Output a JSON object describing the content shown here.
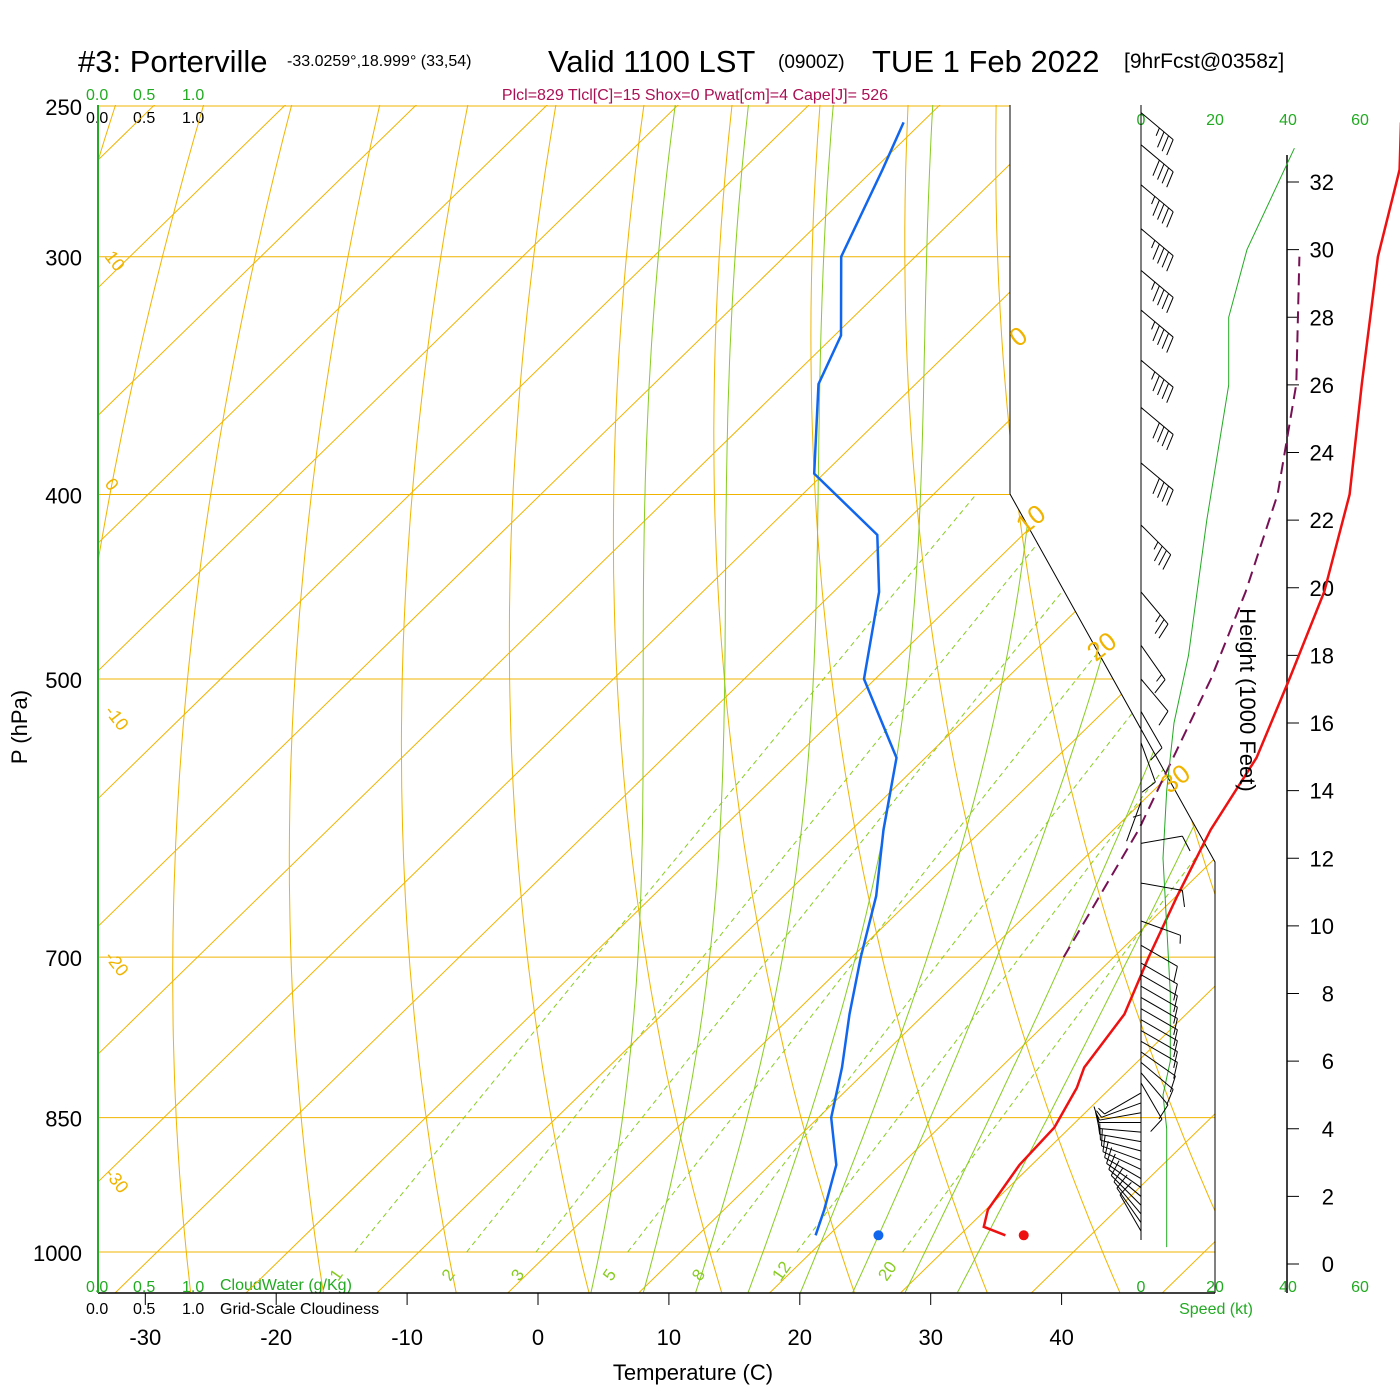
{
  "header": {
    "station": "#3: Porterville",
    "coords": "-33.0259°,18.999° (33,54)",
    "valid": "Valid 1100 LST",
    "zulu": "(0900Z)",
    "date": "TUE 1 Feb 2022",
    "forecast": "[9hrFcst@0358z]",
    "indices": "Plcl=829 Tlcl[C]=15 Shox=0 Pwat[cm]=4 Cape[J]= 526"
  },
  "scales": {
    "cloudwater_ticks": [
      "0.0",
      "0.5",
      "1.0"
    ],
    "cloudiness_ticks": [
      "0.0",
      "0.5",
      "1.0"
    ],
    "cloudwater_label": "CloudWater (g/Kg)",
    "cloudiness_label": "Grid-Scale Cloudiness",
    "speed_ticks": [
      "0",
      "20",
      "40",
      "60"
    ],
    "speed_label": "Speed (kt)"
  },
  "colors": {
    "isotherm": "#f0b400",
    "mixing_ratio": "#88cc22",
    "moist_adiabat": "#88cc22",
    "temperature": "#ee1111",
    "dewpoint": "#1166ee",
    "parcel": "#771155",
    "wind_speed": "#22aa22",
    "green_text": "#22aa22",
    "index_text": "#aa1155"
  },
  "chart_data": {
    "type": "skew-t",
    "xlabel": "Temperature (C)",
    "ylabel": "P (hPa)",
    "y2label": "Height (1000 Feet)",
    "x_ticks": [
      -30,
      -20,
      -10,
      0,
      10,
      20,
      30,
      40
    ],
    "pressure_ticks": [
      250,
      300,
      400,
      500,
      700,
      850,
      1000
    ],
    "height_ticks": [
      0,
      2,
      4,
      6,
      8,
      10,
      12,
      14,
      16,
      18,
      20,
      22,
      24,
      26,
      28,
      30,
      32
    ],
    "dry_adiabat_labels": [
      {
        "text": "10",
        "side": "left",
        "p": 300
      },
      {
        "text": "0",
        "side": "left",
        "p": 395
      },
      {
        "text": "-10",
        "side": "left",
        "p": 520
      },
      {
        "text": "-20",
        "side": "left",
        "p": 700
      },
      {
        "text": "-30",
        "side": "left",
        "p": 910
      },
      {
        "text": "0",
        "side": "right",
        "p": 335
      },
      {
        "text": "10",
        "side": "right",
        "p": 420
      },
      {
        "text": "20",
        "side": "right",
        "p": 490
      },
      {
        "text": "30",
        "side": "right",
        "p": 575
      }
    ],
    "mixing_ratio_labels": [
      "1",
      "2",
      "3",
      "5",
      "8",
      "12",
      "20"
    ],
    "temperature": [
      {
        "p": 980,
        "t": 31.3
      },
      {
        "p": 970,
        "t": 29.0
      },
      {
        "p": 950,
        "t": 28.0
      },
      {
        "p": 900,
        "t": 27.0
      },
      {
        "p": 860,
        "t": 26.8
      },
      {
        "p": 820,
        "t": 25.5
      },
      {
        "p": 800,
        "t": 24.5
      },
      {
        "p": 750,
        "t": 23.5
      },
      {
        "p": 700,
        "t": 21.0
      },
      {
        "p": 650,
        "t": 18.5
      },
      {
        "p": 600,
        "t": 16.0
      },
      {
        "p": 550,
        "t": 14.0
      },
      {
        "p": 500,
        "t": 10.5
      },
      {
        "p": 450,
        "t": 6.5
      },
      {
        "p": 400,
        "t": 1.0
      },
      {
        "p": 350,
        "t": -6.5
      },
      {
        "p": 300,
        "t": -15.0
      },
      {
        "p": 270,
        "t": -20.0
      },
      {
        "p": 255,
        "t": -23.5
      }
    ],
    "dewpoint": [
      {
        "p": 980,
        "t": 16.8
      },
      {
        "p": 950,
        "t": 15.5
      },
      {
        "p": 900,
        "t": 13.0
      },
      {
        "p": 850,
        "t": 9.0
      },
      {
        "p": 800,
        "t": 6.0
      },
      {
        "p": 750,
        "t": 2.5
      },
      {
        "p": 700,
        "t": -1.0
      },
      {
        "p": 650,
        "t": -4.5
      },
      {
        "p": 600,
        "t": -9.0
      },
      {
        "p": 550,
        "t": -13.5
      },
      {
        "p": 500,
        "t": -22.0
      },
      {
        "p": 450,
        "t": -27.5
      },
      {
        "p": 420,
        "t": -32.0
      },
      {
        "p": 390,
        "t": -41.5
      },
      {
        "p": 350,
        "t": -48.0
      },
      {
        "p": 330,
        "t": -50.0
      },
      {
        "p": 300,
        "t": -56.0
      },
      {
        "p": 270,
        "t": -59.5
      },
      {
        "p": 255,
        "t": -61.5
      }
    ],
    "parcel": [
      {
        "p": 700,
        "t": 14.5
      },
      {
        "p": 600,
        "t": 10.5
      },
      {
        "p": 500,
        "t": 4.5
      },
      {
        "p": 450,
        "t": 0.5
      },
      {
        "p": 400,
        "t": -4.5
      },
      {
        "p": 350,
        "t": -11.5
      },
      {
        "p": 300,
        "t": -21.0
      }
    ],
    "surface": {
      "p": 980,
      "t": 32.7,
      "td": 21.6
    },
    "wind_speed_profile": [
      {
        "h": 0.5,
        "kt": 1
      },
      {
        "h": 2,
        "kt": 1
      },
      {
        "h": 4,
        "kt": 1
      },
      {
        "h": 5,
        "kt": 0
      },
      {
        "h": 6,
        "kt": 2
      },
      {
        "h": 8,
        "kt": 2
      },
      {
        "h": 10,
        "kt": 1
      },
      {
        "h": 12,
        "kt": 0
      },
      {
        "h": 14,
        "kt": 1
      },
      {
        "h": 16,
        "kt": 3
      },
      {
        "h": 18,
        "kt": 7
      },
      {
        "h": 22,
        "kt": 12
      },
      {
        "h": 26,
        "kt": 18
      },
      {
        "h": 28,
        "kt": 18
      },
      {
        "h": 30,
        "kt": 23
      },
      {
        "h": 33,
        "kt": 36
      }
    ],
    "wind_barbs": [
      {
        "p": 975,
        "dir": 150,
        "kt": 10
      },
      {
        "p": 965,
        "dir": 145,
        "kt": 12
      },
      {
        "p": 955,
        "dir": 140,
        "kt": 12
      },
      {
        "p": 945,
        "dir": 135,
        "kt": 12
      },
      {
        "p": 935,
        "dir": 130,
        "kt": 12
      },
      {
        "p": 925,
        "dir": 125,
        "kt": 12
      },
      {
        "p": 915,
        "dir": 120,
        "kt": 12
      },
      {
        "p": 905,
        "dir": 115,
        "kt": 12
      },
      {
        "p": 895,
        "dir": 110,
        "kt": 12
      },
      {
        "p": 885,
        "dir": 105,
        "kt": 10
      },
      {
        "p": 875,
        "dir": 100,
        "kt": 10
      },
      {
        "p": 865,
        "dir": 95,
        "kt": 10
      },
      {
        "p": 855,
        "dir": 90,
        "kt": 10
      },
      {
        "p": 845,
        "dir": 80,
        "kt": 8
      },
      {
        "p": 835,
        "dir": 70,
        "kt": 8
      },
      {
        "p": 825,
        "dir": 60,
        "kt": 8
      },
      {
        "p": 815,
        "dir": 330,
        "kt": 10
      },
      {
        "p": 805,
        "dir": 320,
        "kt": 10
      },
      {
        "p": 795,
        "dir": 310,
        "kt": 10
      },
      {
        "p": 785,
        "dir": 305,
        "kt": 10
      },
      {
        "p": 775,
        "dir": 300,
        "kt": 10
      },
      {
        "p": 765,
        "dir": 300,
        "kt": 10
      },
      {
        "p": 755,
        "dir": 300,
        "kt": 10
      },
      {
        "p": 745,
        "dir": 300,
        "kt": 10
      },
      {
        "p": 735,
        "dir": 300,
        "kt": 10
      },
      {
        "p": 725,
        "dir": 300,
        "kt": 10
      },
      {
        "p": 715,
        "dir": 300,
        "kt": 10
      },
      {
        "p": 705,
        "dir": 300,
        "kt": 10
      },
      {
        "p": 690,
        "dir": 300,
        "kt": 10
      },
      {
        "p": 670,
        "dir": 290,
        "kt": 8
      },
      {
        "p": 640,
        "dir": 280,
        "kt": 10
      },
      {
        "p": 610,
        "dir": 260,
        "kt": 10
      },
      {
        "p": 580,
        "dir": 20,
        "kt": 3
      },
      {
        "p": 560,
        "dir": 0,
        "kt": 5
      },
      {
        "p": 540,
        "dir": 340,
        "kt": 10
      },
      {
        "p": 520,
        "dir": 330,
        "kt": 12
      },
      {
        "p": 500,
        "dir": 320,
        "kt": 12
      },
      {
        "p": 480,
        "dir": 325,
        "kt": 15
      },
      {
        "p": 450,
        "dir": 320,
        "kt": 25
      },
      {
        "p": 415,
        "dir": 315,
        "kt": 35
      },
      {
        "p": 385,
        "dir": 310,
        "kt": 40
      },
      {
        "p": 360,
        "dir": 310,
        "kt": 40
      },
      {
        "p": 340,
        "dir": 310,
        "kt": 45
      },
      {
        "p": 320,
        "dir": 310,
        "kt": 45
      },
      {
        "p": 305,
        "dir": 310,
        "kt": 45
      },
      {
        "p": 290,
        "dir": 310,
        "kt": 45
      },
      {
        "p": 275,
        "dir": 310,
        "kt": 45
      },
      {
        "p": 262,
        "dir": 310,
        "kt": 40
      },
      {
        "p": 252,
        "dir": 310,
        "kt": 35
      }
    ]
  }
}
